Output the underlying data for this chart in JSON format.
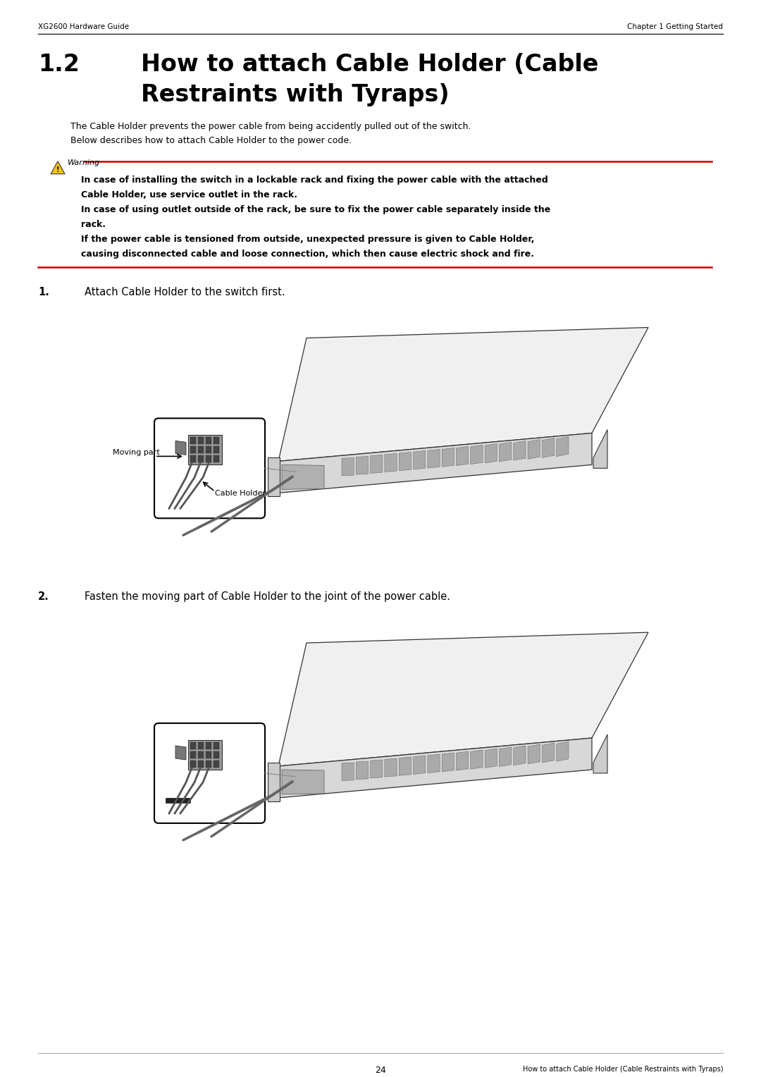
{
  "page_width": 10.8,
  "page_height": 15.28,
  "bg_color": "#ffffff",
  "header_left": "XG2600 Hardware Guide",
  "header_right": "Chapter 1 Getting Started",
  "title_number": "1.2",
  "title_line1": "How to attach Cable Holder (Cable",
  "title_line2": "Restraints with Tyraps)",
  "body_text1": "The Cable Holder prevents the power cable from being accidently pulled out of the switch.",
  "body_text2": "Below describes how to attach Cable Holder to the power code.",
  "warning_label": "Warning",
  "warning_lines": [
    "In case of installing the switch in a lockable rack and fixing the power cable with the attached",
    "Cable Holder, use service outlet in the rack.",
    "In case of using outlet outside of the rack, be sure to fix the power cable separately inside the",
    "rack.",
    "If the power cable is tensioned from outside, unexpected pressure is given to Cable Holder,",
    "causing disconnected cable and loose connection, which then cause electric shock and fire."
  ],
  "step1_num": "1.",
  "step1_text": "Attach Cable Holder to the switch first.",
  "step2_num": "2.",
  "step2_text": "Fasten the moving part of Cable Holder to the joint of the power cable.",
  "moving_part_label": "Moving part",
  "cable_holder_label": "Cable Holder",
  "footer_page": "24",
  "footer_right": "How to attach Cable Holder (Cable Restraints with Tyraps)",
  "red_color": "#cc0000",
  "warn_yellow": "#f5c518",
  "text_color": "#000000",
  "gray_light": "#e0e0e0",
  "gray_mid": "#b0b0b0",
  "gray_dark": "#888888",
  "gray_darker": "#555555",
  "line_color": "#333333"
}
